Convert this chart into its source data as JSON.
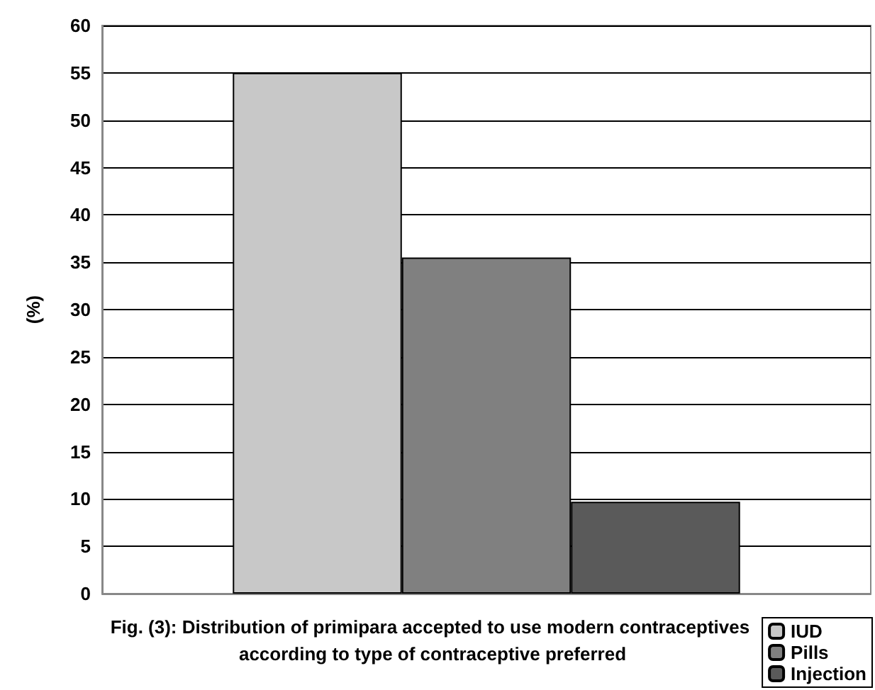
{
  "chart_data": {
    "type": "bar",
    "title": "Fig. (3): Distribution of primipara accepted to use modern contraceptives according to type of contraceptive preferred",
    "ylabel": "(%)",
    "categories": [
      null
    ],
    "series": [
      {
        "name": "IUD",
        "color": "#c8c8c8",
        "values": [
          55
        ]
      },
      {
        "name": "Pills",
        "color": "#808080",
        "values": [
          35.5
        ]
      },
      {
        "name": "Injection",
        "color": "#5a5a5a",
        "values": [
          9.7
        ]
      }
    ],
    "ylim": [
      0,
      60
    ],
    "yticks": [
      0,
      5,
      10,
      15,
      20,
      25,
      30,
      35,
      40,
      45,
      50,
      55,
      60
    ],
    "grid": "y",
    "legend": "bottom right"
  }
}
